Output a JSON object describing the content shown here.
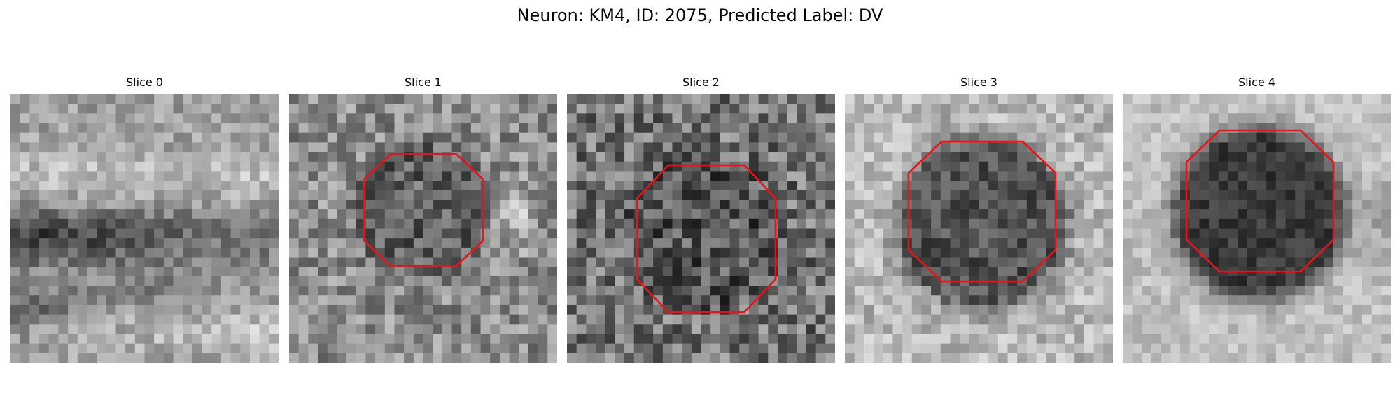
{
  "figure": {
    "title": "Neuron: KM4, ID: 2075, Predicted Label: DV",
    "contour_color": "#e8141a"
  },
  "slices": [
    {
      "label": "Slice 0",
      "has_contour": false,
      "image_pattern": "horizontal dark band in middle with lighter bands above and below"
    },
    {
      "label": "Slice 1",
      "has_contour": true,
      "image_pattern": "noisy texture with darker roughly circular region at center-right"
    },
    {
      "label": "Slice 2",
      "has_contour": true,
      "image_pattern": "noisy dark texture with slightly darker center region"
    },
    {
      "label": "Slice 3",
      "has_contour": true,
      "image_pattern": "light background with dark circular region at center"
    },
    {
      "label": "Slice 4",
      "has_contour": true,
      "image_pattern": "light background with very dark circular region at center"
    }
  ]
}
